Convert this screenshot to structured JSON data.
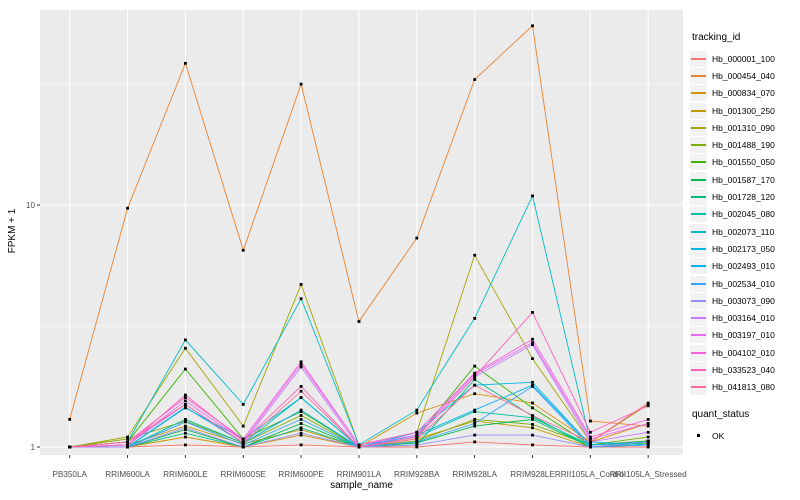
{
  "figure": {
    "panel_bg": "#EBEBEB",
    "grid_color": "#FFFFFF",
    "tick_color": "#333333",
    "tick_label_color": "#4D4D4D",
    "point_color": "#000000"
  },
  "chart_data": {
    "type": "line",
    "title": "",
    "xlabel": "sample_name",
    "ylabel": "FPKM + 1",
    "y_scale": "log10",
    "ylim": [
      0.93,
      64
    ],
    "y_tick_labels": [
      "1",
      "10"
    ],
    "y_tick_values": [
      1,
      10
    ],
    "y_minor_values": [
      3.1623,
      31.623
    ],
    "grid": true,
    "legend_position": "right",
    "legend_title": "tracking_id",
    "point_shape": "square",
    "categories": [
      "PB350LA",
      "RRIM600LA",
      "RRIM600LE",
      "RRIM600SE",
      "RRIM600PE",
      "RRIM901LA",
      "RRIM928BA",
      "RRIM928LA",
      "RRIM928LE",
      "RRII105LA_Control",
      "RRII105LA_Stressed"
    ],
    "series": [
      {
        "name": "Hb_000001_100",
        "color": "#F8766D",
        "values": [
          1.0,
          1.0,
          1.02,
          1.0,
          1.02,
          1.0,
          1.0,
          1.05,
          1.02,
          1.0,
          1.0
        ]
      },
      {
        "name": "Hb_000454_040",
        "color": "#EA8331",
        "values": [
          1.3,
          9.7,
          38.5,
          6.5,
          31.6,
          3.3,
          7.3,
          33.0,
          55.0,
          1.28,
          1.22
        ]
      },
      {
        "name": "Hb_000834_070",
        "color": "#D89000",
        "values": [
          1.0,
          1.0,
          1.1,
          1.0,
          1.12,
          1.0,
          1.38,
          1.66,
          1.52,
          1.05,
          1.25
        ]
      },
      {
        "name": "Hb_001300_250",
        "color": "#C09B00",
        "values": [
          1.0,
          1.02,
          1.22,
          1.03,
          1.18,
          1.0,
          1.08,
          1.28,
          1.2,
          1.0,
          1.06
        ]
      },
      {
        "name": "Hb_001310_090",
        "color": "#A3A500",
        "values": [
          1.0,
          1.1,
          2.56,
          1.22,
          4.7,
          1.02,
          1.15,
          6.2,
          2.32,
          1.05,
          1.5
        ]
      },
      {
        "name": "Hb_001488_190",
        "color": "#7CAE00",
        "values": [
          1.0,
          1.08,
          1.28,
          1.04,
          1.35,
          1.0,
          1.06,
          1.3,
          1.24,
          1.02,
          1.1
        ]
      },
      {
        "name": "Hb_001550_050",
        "color": "#39B600",
        "values": [
          1.0,
          1.05,
          2.1,
          1.08,
          1.4,
          1.0,
          1.1,
          2.16,
          1.45,
          1.02,
          1.06
        ]
      },
      {
        "name": "Hb_001587_170",
        "color": "#00BB4E",
        "values": [
          1.0,
          1.0,
          1.18,
          1.0,
          1.25,
          1.0,
          1.04,
          1.22,
          1.3,
          1.0,
          1.04
        ]
      },
      {
        "name": "Hb_001728_120",
        "color": "#00BF7D",
        "values": [
          1.0,
          1.0,
          1.14,
          1.0,
          1.2,
          1.0,
          1.02,
          1.9,
          1.34,
          1.0,
          1.02
        ]
      },
      {
        "name": "Hb_002045_080",
        "color": "#00C1A3",
        "values": [
          1.0,
          1.0,
          1.3,
          1.04,
          1.6,
          1.0,
          1.1,
          1.4,
          1.32,
          1.02,
          1.05
        ]
      },
      {
        "name": "Hb_002073_110",
        "color": "#00BFC4",
        "values": [
          1.0,
          1.05,
          2.77,
          1.5,
          4.1,
          1.02,
          1.42,
          3.4,
          10.9,
          1.05,
          1.02
        ]
      },
      {
        "name": "Hb_002173_050",
        "color": "#00BAE0",
        "values": [
          1.0,
          1.0,
          1.45,
          1.08,
          1.6,
          1.0,
          1.15,
          1.8,
          1.85,
          1.02,
          1.05
        ]
      },
      {
        "name": "Hb_002493_010",
        "color": "#00B0F6",
        "values": [
          1.0,
          1.0,
          1.46,
          1.04,
          1.42,
          1.0,
          1.12,
          1.42,
          1.8,
          1.02,
          1.05
        ]
      },
      {
        "name": "Hb_002534_010",
        "color": "#35A2FF",
        "values": [
          1.0,
          1.0,
          1.27,
          1.02,
          1.3,
          1.0,
          1.05,
          1.25,
          1.78,
          1.0,
          1.02
        ]
      },
      {
        "name": "Hb_003073_090",
        "color": "#9590FF",
        "values": [
          1.0,
          1.0,
          1.2,
          1.0,
          1.14,
          1.0,
          1.02,
          1.12,
          1.12,
          1.0,
          1.05
        ]
      },
      {
        "name": "Hb_003164_010",
        "color": "#C77CFF",
        "values": [
          1.0,
          1.02,
          1.5,
          1.04,
          2.14,
          1.0,
          1.1,
          1.95,
          2.65,
          1.05,
          1.15
        ]
      },
      {
        "name": "Hb_003197_010",
        "color": "#E76BF3",
        "values": [
          1.0,
          1.02,
          1.55,
          1.06,
          2.2,
          1.02,
          1.12,
          2.0,
          2.7,
          1.08,
          1.25
        ]
      },
      {
        "name": "Hb_004102_010",
        "color": "#FA62DB",
        "values": [
          1.0,
          1.05,
          1.6,
          1.08,
          2.25,
          1.02,
          1.15,
          2.02,
          2.79,
          1.1,
          1.3
        ]
      },
      {
        "name": "Hb_033523_040",
        "color": "#FF62BC",
        "values": [
          1.0,
          1.02,
          1.64,
          1.06,
          1.78,
          1.0,
          1.1,
          1.95,
          3.6,
          1.15,
          1.48
        ]
      },
      {
        "name": "Hb_041813_080",
        "color": "#FF6A98",
        "values": [
          1.0,
          1.05,
          1.5,
          1.04,
          1.7,
          1.0,
          1.08,
          1.8,
          1.35,
          1.05,
          1.52
        ]
      }
    ],
    "quant_legend": {
      "title": "quant_status",
      "items": [
        {
          "label": "OK",
          "shape": "square",
          "color": "#000000"
        }
      ]
    }
  }
}
